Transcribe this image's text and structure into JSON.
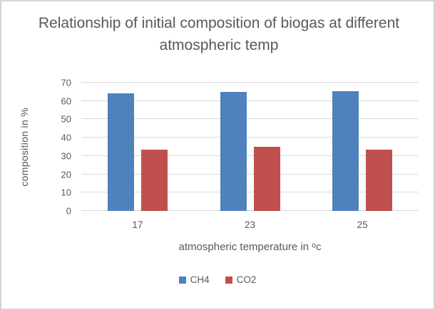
{
  "frame": {
    "background": "#ffffff",
    "border_color": "#d4d4d4",
    "text_color": "#595959"
  },
  "chart_data": {
    "type": "bar",
    "title": "Relationship of initial composition of biogas at different atmospheric temp",
    "categories": [
      "17",
      "23",
      "25"
    ],
    "series": [
      {
        "name": "CH4",
        "color": "#4f81bd",
        "values": [
          64,
          65,
          65.5
        ]
      },
      {
        "name": "CO2",
        "color": "#c0504d",
        "values": [
          33.5,
          35,
          33.5
        ]
      }
    ],
    "xlabel": "atmospheric temperature in ᵒc",
    "ylabel": "composition in %",
    "ylim": [
      0,
      70
    ],
    "ytick_step": 10,
    "yticks": [
      0,
      10,
      20,
      30,
      40,
      50,
      60,
      70
    ],
    "grid": true,
    "gridline_color": "#d9d9d9",
    "legend_position": "bottom"
  }
}
